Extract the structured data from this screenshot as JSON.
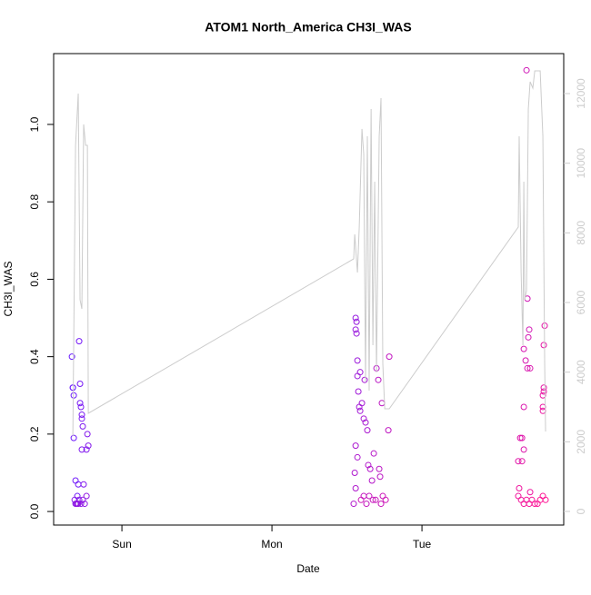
{
  "chart_data": {
    "type": "scatter",
    "title": "ATOM1 North_America CH3I_WAS",
    "x_label": "Date",
    "y_label": "CH3I_WAS",
    "xlim": [
      0.545,
      3.945
    ],
    "xticks": [
      {
        "value": 1,
        "label": "Sun"
      },
      {
        "value": 2,
        "label": "Mon"
      },
      {
        "value": 3,
        "label": "Tue"
      }
    ],
    "ylim": [
      -0.035,
      1.183
    ],
    "yticks": [
      {
        "value": 0,
        "label": "0.0"
      },
      0.2,
      0.4,
      0.6,
      0.8,
      {
        "value": 1,
        "label": "1.0"
      }
    ],
    "y2lim": [
      -391,
      13148
    ],
    "y2ticks": [
      0,
      2000,
      4000,
      6000,
      8000,
      10000,
      12000
    ],
    "y2_color": "#cccccc",
    "series": [
      {
        "type": "scatter",
        "colors": [
          "#6a1bff",
          "#ff1493"
        ],
        "x": [
          0.667,
          0.673,
          0.673,
          0.679,
          0.679,
          0.691,
          0.703,
          0.709,
          0.715,
          0.721,
          0.721,
          0.727,
          0.733,
          0.733,
          0.739,
          0.733,
          0.745,
          0.764,
          0.77,
          0.776,
          0.685,
          0.691,
          0.703,
          0.715,
          0.727,
          0.739,
          0.752,
          0.764,
          0.709,
          0.697,
          2.558,
          2.564,
          2.558,
          2.564,
          2.57,
          2.57,
          2.588,
          2.576,
          2.582,
          2.588,
          2.6,
          2.618,
          2.612,
          2.624,
          2.636,
          2.558,
          2.57,
          2.552,
          2.558,
          2.545,
          2.642,
          2.655,
          2.667,
          2.679,
          2.697,
          2.709,
          2.715,
          2.721,
          2.733,
          2.776,
          2.782,
          2.612,
          2.63,
          2.648,
          2.673,
          2.691,
          2.727,
          2.739,
          2.594,
          2.758,
          3.697,
          3.703,
          3.715,
          3.709,
          3.679,
          3.691,
          3.703,
          3.721,
          3.679,
          3.679,
          3.667,
          3.655,
          3.642,
          3.667,
          3.818,
          3.812,
          3.812,
          3.812,
          3.806,
          3.806,
          3.806,
          3.721,
          3.648,
          3.642,
          3.661,
          3.679,
          3.697,
          3.715,
          3.733,
          3.752,
          3.77,
          3.788,
          3.806,
          3.824
        ],
        "values": [
          0.4,
          0.32,
          0.32,
          0.3,
          0.19,
          0.08,
          0.04,
          0.07,
          0.44,
          0.33,
          0.28,
          0.27,
          0.25,
          0.24,
          0.22,
          0.16,
          0.07,
          0.16,
          0.2,
          0.17,
          0.03,
          0.02,
          0.02,
          0.03,
          0.02,
          0.03,
          0.02,
          0.04,
          0.02,
          0.02,
          0.5,
          0.49,
          0.47,
          0.46,
          0.39,
          0.35,
          0.36,
          0.31,
          0.27,
          0.26,
          0.28,
          0.34,
          0.24,
          0.23,
          0.21,
          0.17,
          0.14,
          0.1,
          0.06,
          0.02,
          0.12,
          0.11,
          0.08,
          0.15,
          0.37,
          0.34,
          0.11,
          0.09,
          0.28,
          0.21,
          0.4,
          0.04,
          0.02,
          0.04,
          0.03,
          0.03,
          0.02,
          0.04,
          0.03,
          0.03,
          1.14,
          0.55,
          0.47,
          0.45,
          0.42,
          0.39,
          0.37,
          0.37,
          0.27,
          0.16,
          0.19,
          0.19,
          0.13,
          0.13,
          0.48,
          0.43,
          0.32,
          0.31,
          0.3,
          0.27,
          0.26,
          0.05,
          0.06,
          0.04,
          0.03,
          0.02,
          0.03,
          0.02,
          0.03,
          0.02,
          0.02,
          0.03,
          0.04,
          0.03
        ]
      },
      {
        "type": "line",
        "axis": "y2",
        "color": "#cccccc",
        "x": [
          0.673,
          0.691,
          0.709,
          0.721,
          0.733,
          0.745,
          0.758,
          0.77,
          0.776,
          2.545,
          2.552,
          2.558,
          2.57,
          2.582,
          2.6,
          2.612,
          2.624,
          2.636,
          2.648,
          2.661,
          2.673,
          2.685,
          2.697,
          2.715,
          2.727,
          2.739,
          2.752,
          2.782,
          3.642,
          3.648,
          3.661,
          3.673,
          3.679,
          3.685,
          3.697,
          3.709,
          3.721,
          3.739,
          3.752,
          3.77,
          3.788,
          3.806,
          3.818,
          3.824
        ],
        "values": [
          2165,
          10513,
          12000,
          6079,
          5818,
          11114,
          10513,
          10513,
          2818,
          7253,
          7957,
          7592,
          6861,
          8166,
          10984,
          10253,
          3731,
          10775,
          3470,
          11557,
          4774,
          9470,
          3992,
          10775,
          11870,
          4252,
          2948,
          2948,
          8166,
          10775,
          6861,
          4774,
          9470,
          6079,
          6340,
          11557,
          12340,
          12157,
          12653,
          12653,
          12653,
          10775,
          4252,
          2296
        ]
      }
    ]
  }
}
